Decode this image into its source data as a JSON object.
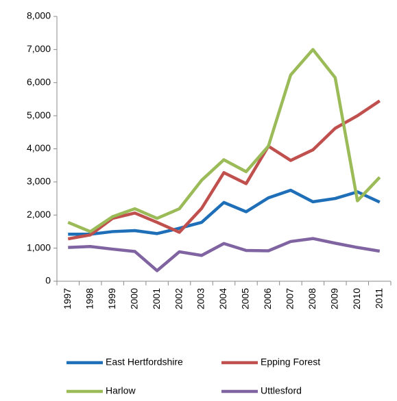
{
  "chart_data": {
    "type": "line",
    "categories": [
      "1997",
      "1998",
      "1999",
      "2000",
      "2001",
      "2002",
      "2003",
      "2004",
      "2005",
      "2006",
      "2007",
      "2008",
      "2009",
      "2010",
      "2011"
    ],
    "series": [
      {
        "name": "East Hertfordshire",
        "color": "#1f6fb8",
        "values": [
          1420,
          1420,
          1500,
          1530,
          1440,
          1600,
          1780,
          2380,
          2100,
          2520,
          2750,
          2400,
          2500,
          2700,
          2390
        ]
      },
      {
        "name": "Epping Forest",
        "color": "#c0504d",
        "values": [
          1280,
          1400,
          1900,
          2060,
          1780,
          1480,
          2200,
          3280,
          2950,
          4080,
          3650,
          3970,
          4620,
          5000,
          5450
        ]
      },
      {
        "name": "Harlow",
        "color": "#9bbb59",
        "values": [
          1780,
          1500,
          1950,
          2190,
          1900,
          2190,
          3050,
          3670,
          3310,
          4080,
          6230,
          7000,
          6150,
          2430,
          3140
        ]
      },
      {
        "name": "Uttlesford",
        "color": "#8064a2",
        "values": [
          1020,
          1050,
          970,
          900,
          320,
          890,
          780,
          1140,
          930,
          920,
          1200,
          1290,
          1150,
          1020,
          910
        ]
      }
    ],
    "ylim": [
      0,
      8000
    ],
    "yticks": [
      0,
      {
        "value": 1000,
        "label": "1,000"
      },
      {
        "value": 2000,
        "label": "2,000"
      },
      {
        "value": 3000,
        "label": "3,000"
      },
      {
        "value": 4000,
        "label": "4,000"
      },
      {
        "value": 5000,
        "label": "5,000"
      },
      {
        "value": 6000,
        "label": "6,000"
      },
      {
        "value": 7000,
        "label": "7,000"
      },
      {
        "value": 8000,
        "label": "8,000"
      }
    ],
    "grid": false,
    "legend": "bottom"
  }
}
